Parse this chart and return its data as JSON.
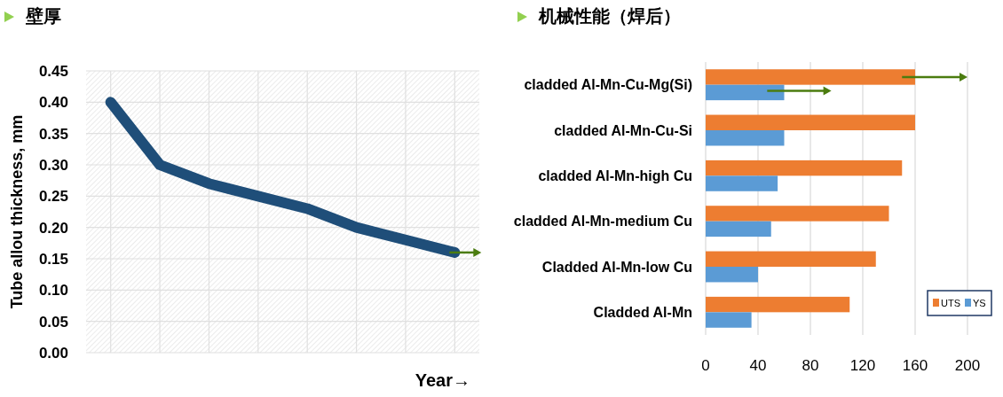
{
  "chart_data": [
    {
      "type": "line",
      "title": "壁厚",
      "xlabel": "Year→",
      "ylabel": "Tube allou thickness, mm",
      "categories": [
        null,
        null,
        null,
        null,
        null,
        null,
        null,
        null
      ],
      "series": [
        {
          "color": "#1f4e79",
          "values": [
            0.4,
            0.3,
            0.27,
            0.25,
            0.23,
            0.2,
            0.18,
            0.16
          ]
        }
      ],
      "ylim": [
        0,
        0.45
      ],
      "yticks": [
        {
          "value": 0,
          "label": "0.00"
        },
        {
          "value": 0.05,
          "label": "0.05"
        },
        {
          "value": 0.1,
          "label": "0.10"
        },
        {
          "value": 0.15,
          "label": "0.15"
        },
        {
          "value": 0.2,
          "label": "0.20"
        },
        {
          "value": 0.25,
          "label": "0.25"
        },
        {
          "value": 0.3,
          "label": "0.30"
        },
        {
          "value": 0.35,
          "label": "0.35"
        },
        {
          "value": 0.4,
          "label": "0.40"
        },
        {
          "value": 0.45,
          "label": "0.45"
        }
      ],
      "grid": true,
      "tick_labels": "y"
    },
    {
      "type": "bar",
      "orientation": "horizontal",
      "title": "机械性能（焊后）",
      "categories": [
        "cladded Al-Mn-Cu-Mg(Si)",
        "cladded Al-Mn-Cu-Si",
        "cladded Al-Mn-high Cu",
        "cladded Al-Mn-medium Cu",
        "Cladded Al-Mn-low Cu",
        "Cladded Al-Mn"
      ],
      "series": [
        {
          "name": "UTS",
          "color": "#ed7d31",
          "values": [
            160,
            160,
            150,
            140,
            130,
            110
          ]
        },
        {
          "name": "YS",
          "color": "#5b9bd5",
          "values": [
            60,
            60,
            55,
            50,
            40,
            35
          ]
        }
      ],
      "xlim": [
        0,
        200
      ],
      "xticks": [
        0,
        40,
        80,
        120,
        160,
        200
      ],
      "grid": "x",
      "legend": "bottom right"
    }
  ]
}
